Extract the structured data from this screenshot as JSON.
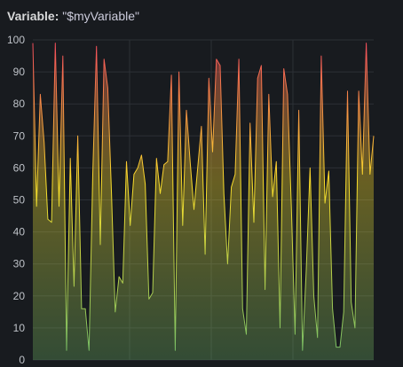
{
  "header": {
    "label": "Variable:",
    "value": "\"$myVariable\""
  },
  "colors": {
    "background": "#181b1f",
    "grid": "#2c3036",
    "gradient_top": "#f2495c",
    "gradient_mid": "#fade2a",
    "gradient_bottom": "#73bf69"
  },
  "chart_data": {
    "type": "area",
    "title": "",
    "xlabel": "",
    "ylabel": "",
    "ylim": [
      0,
      100
    ],
    "yticks": [
      0,
      10,
      20,
      30,
      40,
      50,
      60,
      70,
      80,
      90,
      100
    ],
    "grid": true,
    "legend": "none",
    "series": [
      {
        "values": [
          99,
          48,
          83,
          68,
          44,
          43,
          99,
          48,
          95,
          3,
          63,
          23,
          70,
          16,
          16,
          3,
          58,
          98,
          36,
          94,
          85,
          52,
          15,
          26,
          24,
          62,
          42,
          58,
          60,
          64,
          55,
          19,
          21,
          63,
          52,
          61,
          62,
          89,
          3,
          90,
          42,
          78,
          62,
          47,
          60,
          73,
          33,
          88,
          65,
          94,
          92,
          52,
          30,
          54,
          58,
          94,
          16,
          8,
          74,
          43,
          88,
          92,
          22,
          83,
          51,
          62,
          10,
          91,
          83,
          48,
          8,
          78,
          3,
          28,
          60,
          20,
          7,
          95,
          49,
          59,
          16,
          4,
          4,
          15,
          84,
          18,
          10,
          84,
          58,
          99,
          58,
          70
        ]
      }
    ]
  }
}
